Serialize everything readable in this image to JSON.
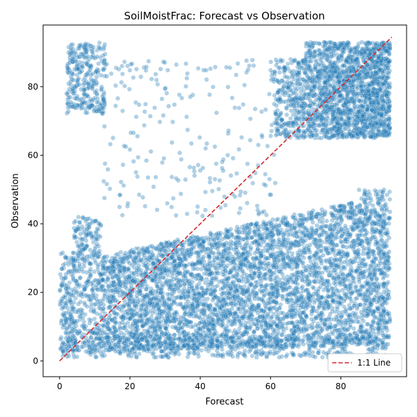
{
  "chart_data": {
    "type": "scatter",
    "title": "SoilMoistFrac: Forecast vs Observation",
    "xlabel": "Forecast",
    "ylabel": "Observation",
    "xlim": [
      -4.7,
      98.7
    ],
    "ylim": [
      -4.6,
      98.0
    ],
    "x_ticks": [
      0,
      20,
      40,
      60,
      80
    ],
    "y_ticks": [
      0,
      20,
      40,
      60,
      80
    ],
    "grid": false,
    "legend_position": "lower right",
    "point_color": "#1f77b4",
    "line_color": "#d62728",
    "series": [
      {
        "kind": "scatter",
        "description_clusters": [
          {
            "x_range": [
              0,
              94
            ],
            "y_range": [
              1,
              50
            ],
            "density": "very high"
          },
          {
            "x_range": [
              60,
              94
            ],
            "y_range": [
              62,
              93
            ],
            "density": "high"
          },
          {
            "x_range": [
              1,
              13
            ],
            "y_range": [
              64,
              93
            ],
            "density": "medium"
          },
          {
            "x_range": [
              12,
              62
            ],
            "y_range": [
              42,
              90
            ],
            "density": "sparse"
          }
        ]
      },
      {
        "kind": "line",
        "name": "1:1 Line",
        "x": [
          0,
          94.5
        ],
        "y": [
          0,
          94.5
        ]
      }
    ]
  }
}
